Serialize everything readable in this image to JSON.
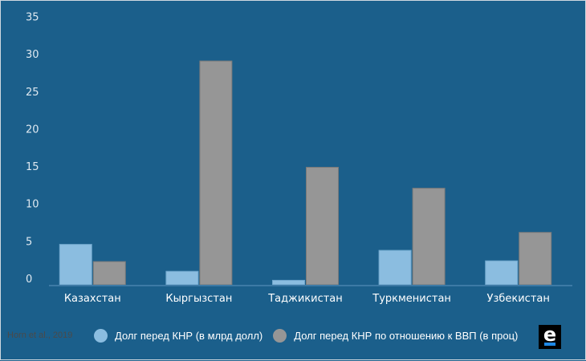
{
  "chart_data": {
    "type": "bar",
    "categories": [
      "Казахстан",
      "Кыргызстан",
      "Таджикистан",
      "Туркменистан",
      "Узбекистан"
    ],
    "series": [
      {
        "name": "Долг перед КНР (в млрд долл)",
        "color": "#8bbde0",
        "values": [
          5.4,
          1.8,
          0.6,
          4.6,
          3.2
        ]
      },
      {
        "name": "Долг перед КНР по отношению к ВВП (в проц)",
        "color": "#969696",
        "values": [
          3.1,
          29.9,
          15.7,
          12.9,
          7.0
        ]
      }
    ],
    "yticks": [
      "0",
      "5",
      "10",
      "15",
      "20",
      "25",
      "30",
      "35"
    ],
    "ylim": [
      0,
      35
    ],
    "title": "",
    "xlabel": "",
    "ylabel": "",
    "legend_position": "bottom",
    "grid": false
  },
  "credit": "Horn et al., 2019",
  "logo_text": "e"
}
